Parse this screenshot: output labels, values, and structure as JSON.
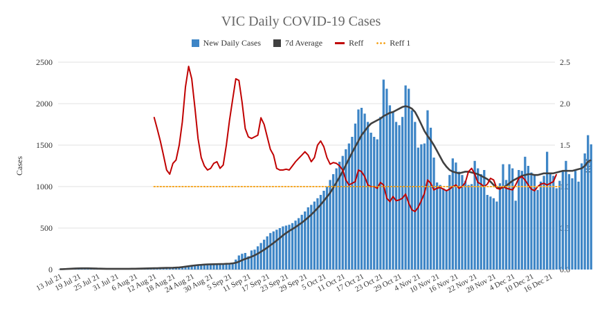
{
  "chart_data": {
    "type": "bar",
    "title": "VIC Daily COVID-19 Cases",
    "ylabel": "Cases",
    "ylabel_right": "Reff",
    "ylim": [
      0,
      2500
    ],
    "ylim_right": [
      0,
      2.5
    ],
    "y_ticks": [
      "0",
      "500",
      "1000",
      "1500",
      "2000",
      "2500"
    ],
    "y_ticks_right": [
      "0.0",
      "0.5",
      "1.0",
      "1.5",
      "2.0",
      "2.5"
    ],
    "x_ticks": [
      "13 Jul 21",
      "19 Jul 21",
      "25 Jul 21",
      "31 Jul 21",
      "6 Aug 21",
      "12 Aug 21",
      "18 Aug 21",
      "24 Aug 21",
      "30 Aug 21",
      "5 Sep 21",
      "11 Sep 21",
      "17 Sep 21",
      "23 Sep 21",
      "29 Sep 21",
      "5 Oct 21",
      "11 Oct 21",
      "17 Oct 21",
      "23 Oct 21",
      "29 Oct 21",
      "4 Nov 21",
      "10 Nov 21",
      "16 Nov 21",
      "22 Nov 21",
      "28 Nov 21",
      "4 Dec 21",
      "10 Dec 21",
      "16 Dec 21"
    ],
    "grid": true,
    "legend_position": "top-center",
    "series": [
      {
        "name": "New Daily Cases",
        "type": "bar",
        "axis": "left",
        "start_date": "2021-07-13",
        "values": [
          2,
          1,
          3,
          5,
          8,
          12,
          14,
          15,
          16,
          19,
          18,
          16,
          14,
          13,
          12,
          11,
          10,
          9,
          8,
          7,
          6,
          7,
          8,
          9,
          10,
          11,
          12,
          13,
          14,
          15,
          16,
          17,
          18,
          19,
          20,
          21,
          22,
          24,
          30,
          35,
          42,
          48,
          52,
          55,
          57,
          60,
          62,
          63,
          64,
          65,
          66,
          68,
          70,
          72,
          75,
          78,
          120,
          170,
          190,
          200,
          160,
          230,
          240,
          280,
          320,
          360,
          400,
          440,
          460,
          480,
          500,
          520,
          530,
          540,
          560,
          590,
          620,
          660,
          700,
          750,
          780,
          820,
          860,
          900,
          950,
          1000,
          1080,
          1150,
          1220,
          1300,
          1370,
          1450,
          1520,
          1600,
          1760,
          1930,
          1950,
          1880,
          1780,
          1650,
          1600,
          1570,
          1840,
          2290,
          2180,
          1980,
          1900,
          1780,
          1740,
          1840,
          2220,
          2180,
          1920,
          1780,
          1470,
          1510,
          1520,
          1920,
          1710,
          1350,
          1050,
          1020,
          980,
          960,
          1140,
          1340,
          1290,
          1180,
          1140,
          1070,
          1020,
          1030,
          1310,
          1220,
          1150,
          1200,
          900,
          880,
          860,
          820,
          1040,
          1270,
          1080,
          1270,
          1220,
          830,
          1200,
          1190,
          1360,
          1250,
          1170,
          1150,
          960,
          1060,
          1130,
          1420,
          1160,
          1130,
          980,
          1070,
          1190,
          1310,
          1150,
          1100,
          1190,
          1060,
          1280,
          1400,
          1620,
          1510
        ],
        "color": "#3d85c6"
      },
      {
        "name": "7d Average",
        "type": "line",
        "axis": "left",
        "start_date": "2021-07-13",
        "values": [
          3,
          5,
          7,
          9,
          11,
          13,
          14,
          15,
          15,
          15,
          14,
          13,
          12,
          11,
          10,
          9,
          9,
          9,
          9,
          9,
          9,
          9,
          9,
          10,
          10,
          11,
          12,
          13,
          14,
          15,
          16,
          17,
          18,
          19,
          20,
          21,
          22,
          23,
          26,
          30,
          35,
          40,
          45,
          50,
          54,
          57,
          60,
          62,
          63,
          64,
          65,
          66,
          67,
          69,
          71,
          74,
          82,
          95,
          112,
          128,
          140,
          155,
          172,
          192,
          214,
          238,
          264,
          292,
          320,
          350,
          380,
          412,
          440,
          465,
          488,
          512,
          538,
          565,
          595,
          628,
          662,
          700,
          740,
          782,
          828,
          875,
          925,
          985,
          1050,
          1115,
          1185,
          1260,
          1335,
          1410,
          1480,
          1550,
          1620,
          1670,
          1720,
          1760,
          1780,
          1800,
          1820,
          1850,
          1870,
          1890,
          1900,
          1920,
          1940,
          1960,
          1970,
          1960,
          1940,
          1900,
          1830,
          1750,
          1670,
          1610,
          1560,
          1500,
          1430,
          1360,
          1290,
          1240,
          1200,
          1180,
          1170,
          1160,
          1170,
          1180,
          1180,
          1170,
          1160,
          1150,
          1130,
          1110,
          1090,
          1060,
          1020,
          990,
          980,
          990,
          1010,
          1040,
          1070,
          1090,
          1110,
          1130,
          1140,
          1150,
          1150,
          1140,
          1140,
          1150,
          1160,
          1160,
          1160,
          1160,
          1170,
          1180,
          1190,
          1190,
          1190,
          1190,
          1200,
          1210,
          1220,
          1250,
          1300,
          1320
        ],
        "color": "#404040"
      },
      {
        "name": "Reff",
        "type": "line",
        "axis": "right",
        "start_date": "2021-08-12",
        "values": [
          1.84,
          1.7,
          1.55,
          1.38,
          1.2,
          1.15,
          1.28,
          1.32,
          1.5,
          1.78,
          2.2,
          2.45,
          2.3,
          1.95,
          1.58,
          1.35,
          1.25,
          1.2,
          1.22,
          1.28,
          1.3,
          1.22,
          1.26,
          1.5,
          1.8,
          2.05,
          2.3,
          2.28,
          2.02,
          1.7,
          1.6,
          1.58,
          1.6,
          1.62,
          1.83,
          1.75,
          1.6,
          1.45,
          1.38,
          1.22,
          1.2,
          1.2,
          1.21,
          1.2,
          1.25,
          1.3,
          1.34,
          1.38,
          1.42,
          1.38,
          1.3,
          1.35,
          1.5,
          1.55,
          1.48,
          1.35,
          1.27,
          1.29,
          1.28,
          1.25,
          1.2,
          1.08,
          1.02,
          1.04,
          1.06,
          1.2,
          1.18,
          1.12,
          1.02,
          1.0,
          1.0,
          0.98,
          1.05,
          1.02,
          0.86,
          0.82,
          0.88,
          0.83,
          0.84,
          0.86,
          0.91,
          0.8,
          0.72,
          0.7,
          0.75,
          0.83,
          0.92,
          1.08,
          1.04,
          0.96,
          0.98,
          0.99,
          0.97,
          0.95,
          0.97,
          1.0,
          1.02,
          0.98,
          1.0,
          1.05,
          1.18,
          1.22,
          1.15,
          1.05,
          1.03,
          1.0,
          1.03,
          1.1,
          1.08,
          0.98,
          0.97,
          1.0,
          0.98,
          0.97,
          0.96,
          1.02,
          1.1,
          1.12,
          1.08,
          1.02,
          0.97,
          0.95,
          1.0,
          1.03,
          1.04,
          1.02,
          1.04,
          1.06,
          1.15
        ],
        "color": "#c00000"
      },
      {
        "name": "Reff 1",
        "type": "line",
        "axis": "right",
        "start_date": "2021-08-12",
        "values": [
          1.0,
          1.0,
          1.0,
          1.0,
          1.0,
          1.0,
          1.0,
          1.0,
          1.0,
          1.0,
          1.0,
          1.0,
          1.0,
          1.0,
          1.0,
          1.0,
          1.0,
          1.0,
          1.0,
          1.0,
          1.0,
          1.0,
          1.0,
          1.0,
          1.0,
          1.0,
          1.0,
          1.0,
          1.0,
          1.0,
          1.0,
          1.0,
          1.0,
          1.0,
          1.0,
          1.0,
          1.0,
          1.0,
          1.0,
          1.0,
          1.0,
          1.0,
          1.0,
          1.0,
          1.0,
          1.0,
          1.0,
          1.0,
          1.0,
          1.0,
          1.0,
          1.0,
          1.0,
          1.0,
          1.0,
          1.0,
          1.0,
          1.0,
          1.0,
          1.0,
          1.0,
          1.0,
          1.0,
          1.0,
          1.0,
          1.0,
          1.0,
          1.0,
          1.0,
          1.0,
          1.0,
          1.0,
          1.0,
          1.0,
          1.0,
          1.0,
          1.0,
          1.0,
          1.0,
          1.0,
          1.0,
          1.0,
          1.0,
          1.0,
          1.0,
          1.0,
          1.0,
          1.0,
          1.0,
          1.0,
          1.0,
          1.0,
          1.0,
          1.0,
          1.0,
          1.0,
          1.0,
          1.0,
          1.0,
          1.0,
          1.0,
          1.0,
          1.0,
          1.0,
          1.0,
          1.0,
          1.0,
          1.0,
          1.0,
          1.0,
          1.0,
          1.0,
          1.0,
          1.0,
          1.0,
          1.0,
          1.0,
          1.0,
          1.0,
          1.0,
          1.0,
          1.0,
          1.0,
          1.0,
          1.0,
          1.0,
          1.0,
          1.0,
          1.0,
          1.0
        ],
        "color": "#f5a623",
        "style": "dotted"
      }
    ]
  }
}
